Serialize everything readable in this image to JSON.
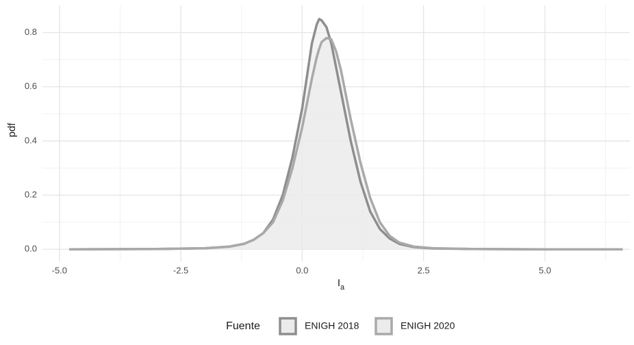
{
  "chart_data": {
    "type": "density",
    "xlabel": "I",
    "xlabel_sub": "a",
    "ylabel": "pdf",
    "x": [
      -4.8,
      -3,
      -2,
      -1.5,
      -1.2,
      -1.0,
      -0.8,
      -0.6,
      -0.4,
      -0.2,
      0,
      0.1,
      0.2,
      0.3,
      0.35,
      0.4,
      0.5,
      0.6,
      0.7,
      0.8,
      1.0,
      1.2,
      1.4,
      1.6,
      1.8,
      2.0,
      2.3,
      2.7,
      3.5,
      5,
      6.6
    ],
    "series": [
      {
        "name": "ENIGH 2018",
        "color": "#8e8e8e",
        "fill": "#ebebeb",
        "values": [
          0,
          0.001,
          0.004,
          0.01,
          0.02,
          0.035,
          0.06,
          0.11,
          0.2,
          0.34,
          0.52,
          0.64,
          0.76,
          0.83,
          0.85,
          0.845,
          0.82,
          0.76,
          0.67,
          0.58,
          0.4,
          0.25,
          0.14,
          0.075,
          0.04,
          0.02,
          0.008,
          0.003,
          0.001,
          0,
          0
        ]
      },
      {
        "name": "ENIGH 2020",
        "color": "#a9a9a9",
        "fill": "#ebebeb",
        "values": [
          0,
          0.001,
          0.004,
          0.01,
          0.02,
          0.035,
          0.06,
          0.1,
          0.18,
          0.3,
          0.45,
          0.54,
          0.63,
          0.71,
          0.74,
          0.765,
          0.78,
          0.775,
          0.73,
          0.66,
          0.48,
          0.32,
          0.19,
          0.1,
          0.05,
          0.025,
          0.01,
          0.004,
          0.001,
          0,
          0
        ]
      }
    ],
    "legend_title": "Fuente",
    "legend": "bottom",
    "xlim": [
      -5.35,
      6.75
    ],
    "xticks": [
      {
        "value": -5,
        "label": "-5.0"
      },
      -2.5,
      {
        "value": 0,
        "label": "0.0"
      },
      2.5,
      {
        "value": 5,
        "label": "5.0"
      }
    ],
    "xminor": [
      -3.75,
      -1.25,
      1.25,
      3.75,
      6.25
    ],
    "ylim": [
      -0.045,
      0.9
    ],
    "yticks": [
      {
        "value": 0,
        "label": "0.0"
      },
      0.2,
      0.4,
      0.6,
      0.8
    ],
    "yminor": [
      0.1,
      0.3,
      0.5,
      0.7
    ],
    "grid": true
  }
}
